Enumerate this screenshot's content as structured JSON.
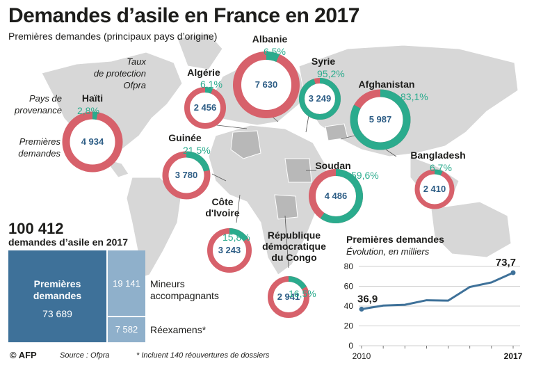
{
  "title": "Demandes d’asile en France en 2017",
  "subtitle": "Premières demandes (principaux pays d’origine)",
  "legend": {
    "rate_label_1": "Taux",
    "rate_label_2": "de protection",
    "rate_label_3": "Ofpra",
    "country_label_1": "Pays de",
    "country_label_2": "provenance",
    "requests_label_1": "Premières",
    "requests_label_2": "demandes"
  },
  "colors": {
    "ring_red": "#d7616b",
    "ring_green": "#2bab8d",
    "value_blue": "#2e5e86",
    "treemap_dark": "#3e7199",
    "treemap_light": "#8fb0cb",
    "line": "#3e7199",
    "map_grey": "#d7d7d7",
    "highlight_grey": "#b8b8b8"
  },
  "countries": [
    {
      "name": "Haïti",
      "rate": "2,8%",
      "requests": "4 934",
      "rate_value": 2.8
    },
    {
      "name": "Algérie",
      "rate": "6,1%",
      "requests": "2 456",
      "rate_value": 6.1
    },
    {
      "name": "Albanie",
      "rate": "6,5%",
      "requests": "7 630",
      "rate_value": 6.5
    },
    {
      "name": "Syrie",
      "rate": "95,2%",
      "requests": "3 249",
      "rate_value": 95.2
    },
    {
      "name": "Afghanistan",
      "rate": "83,1%",
      "requests": "5 987",
      "rate_value": 83.1
    },
    {
      "name": "Guinée",
      "rate": "21,5%",
      "requests": "3 780",
      "rate_value": 21.5
    },
    {
      "name": "Bangladesh",
      "rate": "6,7%",
      "requests": "2 410",
      "rate_value": 6.7
    },
    {
      "name": "Soudan",
      "rate": "59,6%",
      "requests": "4 486",
      "rate_value": 59.6
    },
    {
      "name": "Côte d'Ivoire",
      "name_line1": "Côte",
      "name_line2": "d'Ivoire",
      "rate": "15,8%",
      "requests": "3 243",
      "rate_value": 15.8
    },
    {
      "name": "République démocratique du Congo",
      "name_line1": "République",
      "name_line2": "démocratique",
      "name_line3": "du Congo",
      "rate": "16,5%",
      "requests": "2 941",
      "rate_value": 16.5
    }
  ],
  "total": {
    "value": "100 412",
    "label": "demandes d’asile en 2017"
  },
  "treemap": {
    "first_label_1": "Premières",
    "first_label_2": "demandes",
    "first_value": "73 689",
    "minors_value": "19 141",
    "minors_label_1": "Mineurs",
    "minors_label_2": "accompagnants",
    "reexam_value": "7 582",
    "reexam_label": "Réexamens*"
  },
  "chart_data": {
    "type": "line",
    "title": "Premières demandes",
    "subtitle": "Évolution, en milliers",
    "x": [
      2010,
      2011,
      2012,
      2013,
      2014,
      2015,
      2016,
      2017
    ],
    "y": [
      36.9,
      40.5,
      41.3,
      45.9,
      45.5,
      59.3,
      63.9,
      73.7
    ],
    "ylim": [
      0,
      80
    ],
    "yticks": [
      "0",
      "20",
      "40",
      "60",
      "80"
    ],
    "xtick_labels": [
      "2010",
      "2017"
    ],
    "annotation_first": "36,9",
    "annotation_last": "73,7",
    "grid": true
  },
  "footer": {
    "afp": "© AFP",
    "source": "Source : Ofpra",
    "note": "* Incluent 140 réouvertures de dossiers"
  }
}
